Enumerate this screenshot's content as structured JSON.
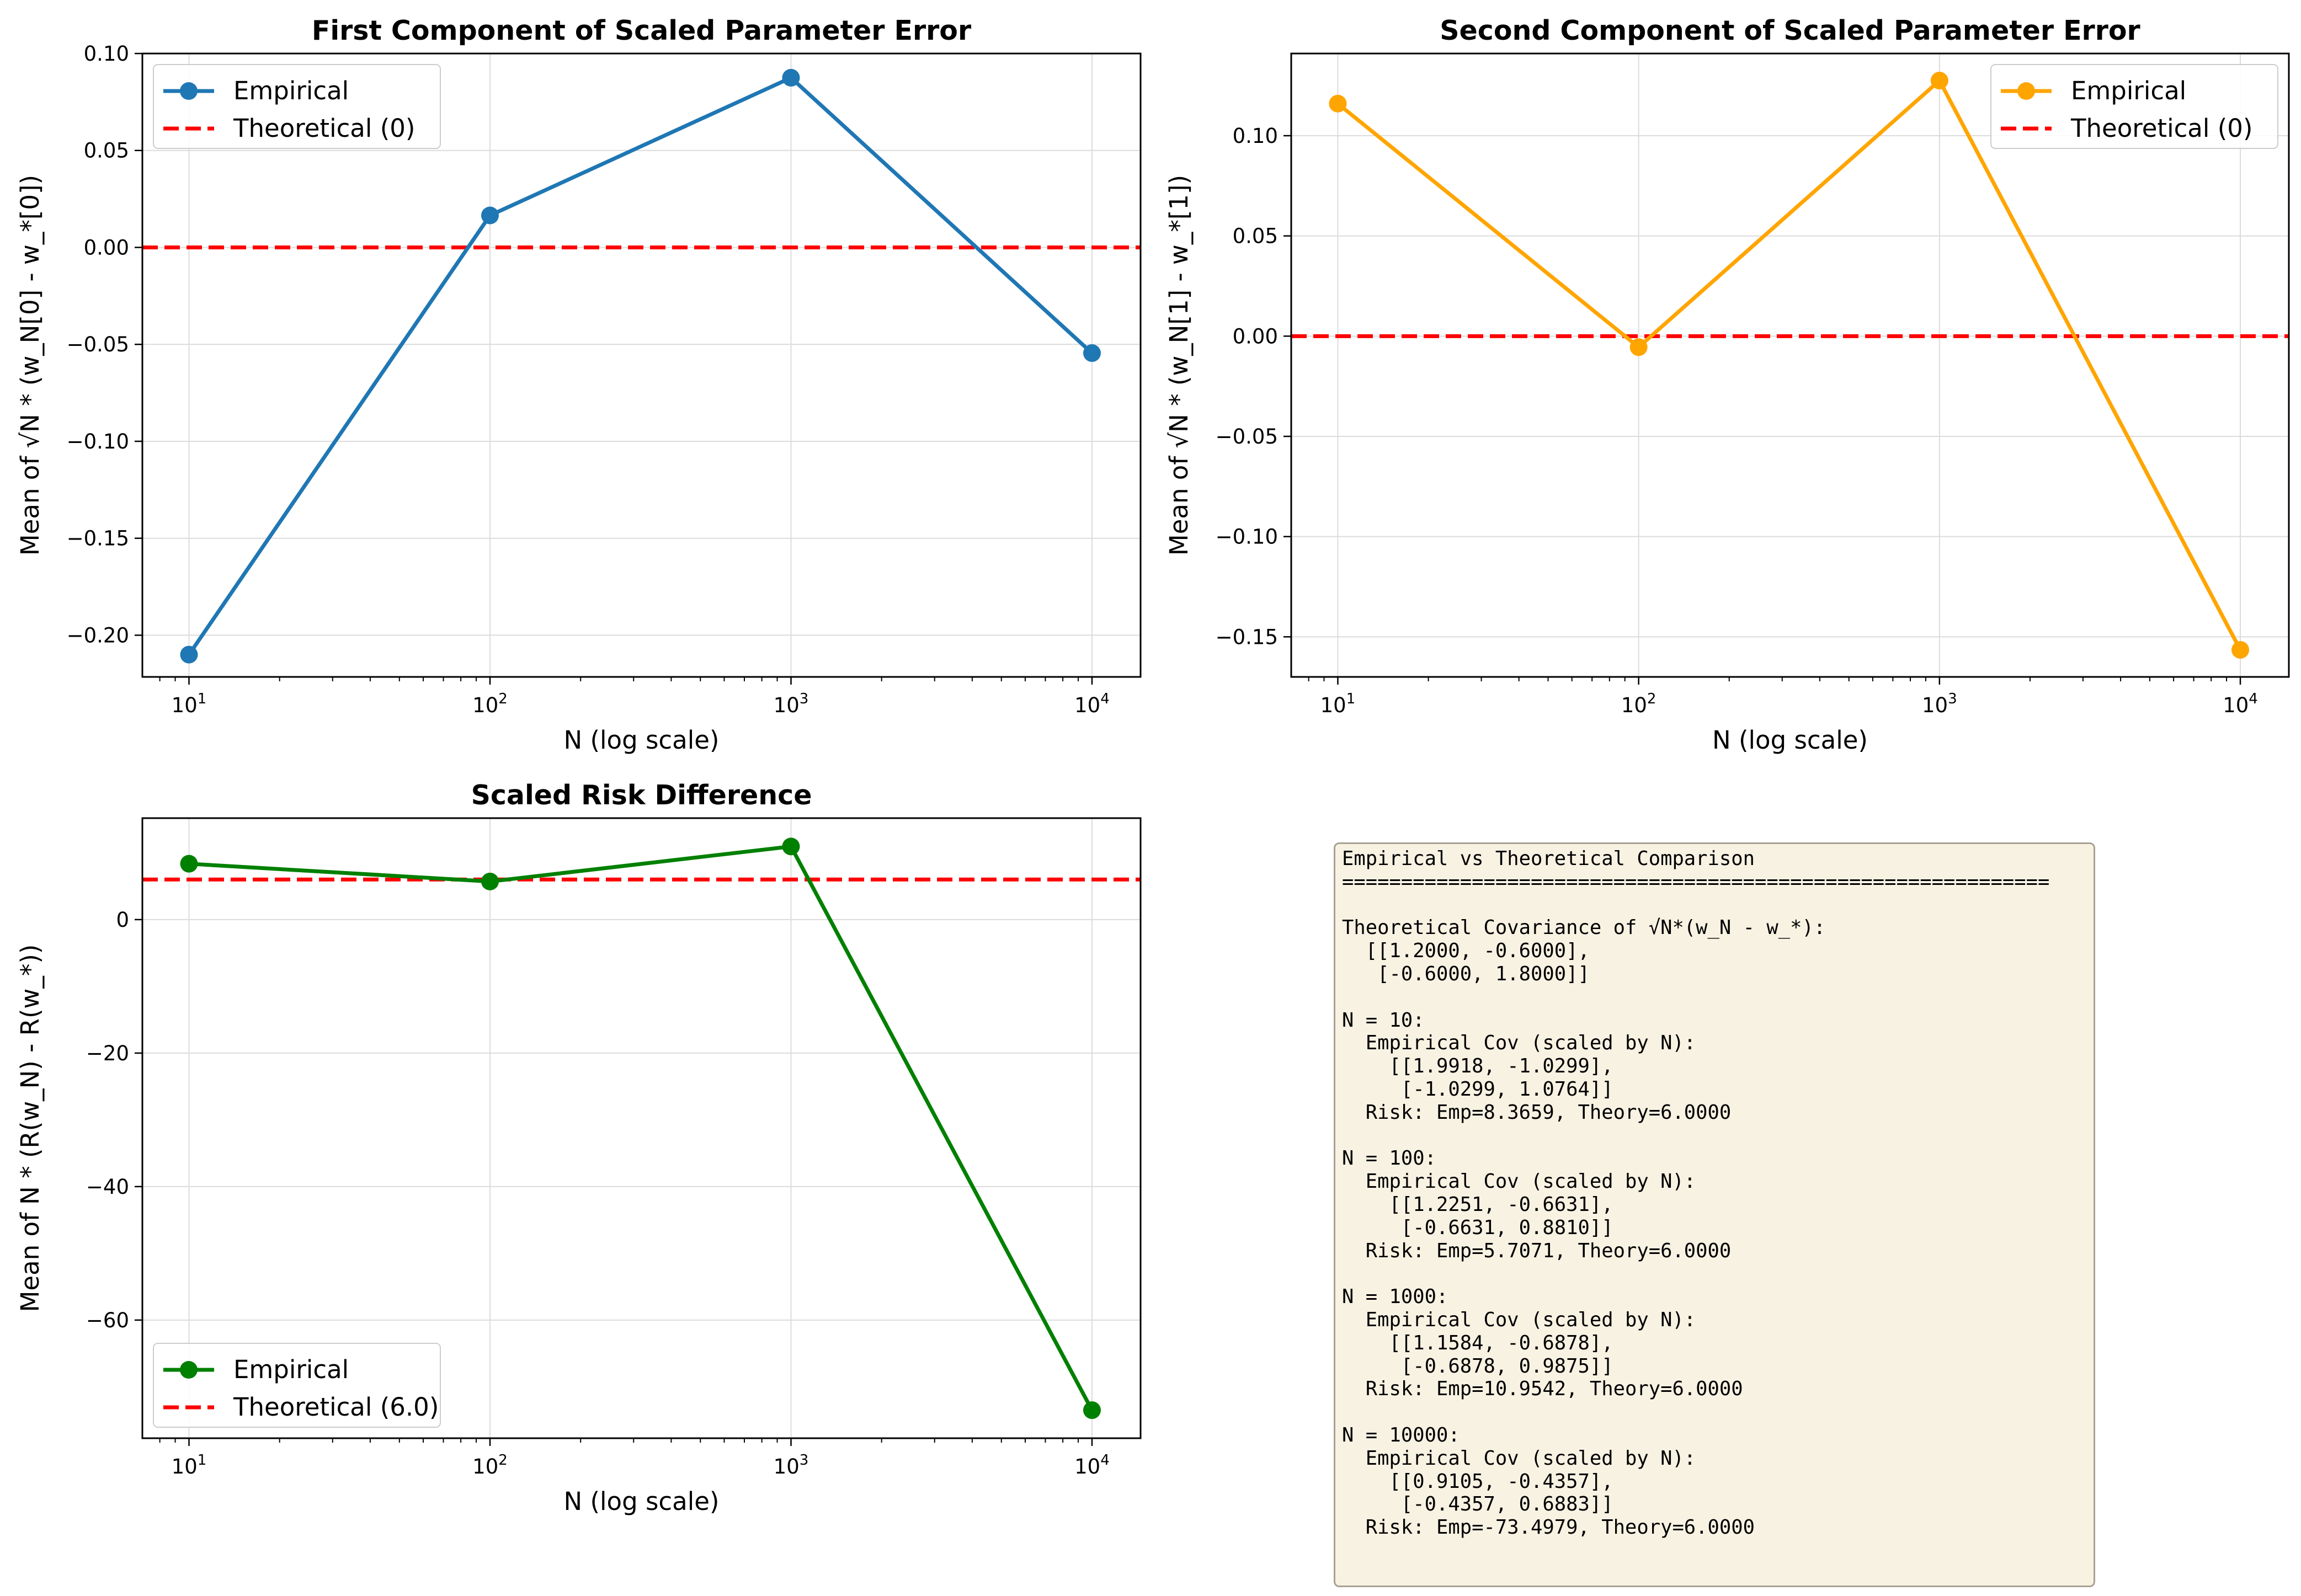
{
  "chart_data": [
    {
      "type": "line",
      "title": "First Component of Scaled Parameter Error",
      "xlabel": "N (log scale)",
      "ylabel": "Mean of √N * (w_N[0] - w_*[0])",
      "xscale": "log",
      "x": [
        10,
        100,
        1000,
        10000
      ],
      "xticks": [
        {
          "base": "10",
          "exp": "1"
        },
        {
          "base": "10",
          "exp": "2"
        },
        {
          "base": "10",
          "exp": "3"
        },
        {
          "base": "10",
          "exp": "4"
        }
      ],
      "yticks": [
        "0.10",
        "0.05",
        "0.00",
        "−0.05",
        "−0.10",
        "−0.15",
        "−0.20"
      ],
      "ytick_values": [
        0.1,
        0.05,
        0.0,
        -0.05,
        -0.1,
        -0.15,
        -0.2
      ],
      "ylim": [
        -0.2215,
        0.1
      ]
    },
    {
      "type": "line",
      "title": "Second Component of Scaled Parameter Error",
      "xlabel": "N (log scale)",
      "ylabel": "Mean of √N * (w_N[1] - w_*[1])",
      "xscale": "log",
      "x": [
        10,
        100,
        1000,
        10000
      ],
      "xticks": [
        {
          "base": "10",
          "exp": "1"
        },
        {
          "base": "10",
          "exp": "2"
        },
        {
          "base": "10",
          "exp": "3"
        },
        {
          "base": "10",
          "exp": "4"
        }
      ],
      "yticks": [
        "0.10",
        "0.05",
        "0.00",
        "−0.05",
        "−0.10",
        "−0.15"
      ],
      "ytick_values": [
        0.1,
        0.05,
        0.0,
        -0.05,
        -0.1,
        -0.15
      ],
      "ylim": [
        -0.17,
        0.141
      ]
    },
    {
      "type": "line",
      "title": "Scaled Risk Difference",
      "xlabel": "N (log scale)",
      "ylabel": "Mean of N * (R(w_N) - R(w_*))",
      "xscale": "log",
      "x": [
        10,
        100,
        1000,
        10000
      ],
      "xticks": [
        {
          "base": "10",
          "exp": "1"
        },
        {
          "base": "10",
          "exp": "2"
        },
        {
          "base": "10",
          "exp": "3"
        },
        {
          "base": "10",
          "exp": "4"
        }
      ],
      "yticks": [
        "0",
        "−20",
        "−40",
        "−60"
      ],
      "ytick_values": [
        0,
        -20,
        -40,
        -60
      ],
      "ylim": [
        -77.7,
        15.2
      ]
    }
  ],
  "panels": [
    {
      "title": "First Component of Scaled Parameter Error",
      "xlabel": "N (log scale)",
      "ylabel": "Mean of √N * (w_N[0] - w_*[0])",
      "series": [
        {
          "name": "Empirical",
          "color": "#1f77b4",
          "values": [
            -0.21,
            0.0165,
            0.0875,
            -0.0545
          ]
        },
        {
          "name": "Theoretical (0)",
          "color": "#ff0000",
          "style": "dashed",
          "value": 0.0
        }
      ],
      "legend": "upper-left"
    },
    {
      "title": "Second Component of Scaled Parameter Error",
      "xlabel": "N (log scale)",
      "ylabel": "Mean of √N * (w_N[1] - w_*[1])",
      "series": [
        {
          "name": "Empirical",
          "color": "#ffa500",
          "values": [
            0.116,
            -0.0055,
            0.1275,
            -0.1565
          ]
        },
        {
          "name": "Theoretical (0)",
          "color": "#ff0000",
          "style": "dashed",
          "value": 0.0
        }
      ],
      "legend": "upper-right"
    },
    {
      "title": "Scaled Risk Difference",
      "xlabel": "N (log scale)",
      "ylabel": "Mean of N * (R(w_N) - R(w_*))",
      "series": [
        {
          "name": "Empirical",
          "color": "#008000",
          "values": [
            8.3659,
            5.7071,
            10.9542,
            -73.4979
          ]
        },
        {
          "name": "Theoretical (6.0)",
          "color": "#ff0000",
          "style": "dashed",
          "value": 6.0
        }
      ],
      "legend": "lower-left"
    }
  ],
  "textbox": {
    "lines": [
      "Empirical vs Theoretical Comparison",
      "============================================================",
      "",
      "Theoretical Covariance of √N*(w_N - w_*):",
      "  [[1.2000, -0.6000],",
      "   [-0.6000, 1.8000]]",
      "",
      "N = 10:",
      "  Empirical Cov (scaled by N):",
      "    [[1.9918, -1.0299],",
      "     [-1.0299, 1.0764]]",
      "  Risk: Emp=8.3659, Theory=6.0000",
      "",
      "N = 100:",
      "  Empirical Cov (scaled by N):",
      "    [[1.2251, -0.6631],",
      "     [-0.6631, 0.8810]]",
      "  Risk: Emp=5.7071, Theory=6.0000",
      "",
      "N = 1000:",
      "  Empirical Cov (scaled by N):",
      "    [[1.1584, -0.6878],",
      "     [-0.6878, 0.9875]]",
      "  Risk: Emp=10.9542, Theory=6.0000",
      "",
      "N = 10000:",
      "  Empirical Cov (scaled by N):",
      "    [[0.9105, -0.4357],",
      "     [-0.4357, 0.6883]]",
      "  Risk: Emp=-73.4979, Theory=6.0000"
    ]
  }
}
